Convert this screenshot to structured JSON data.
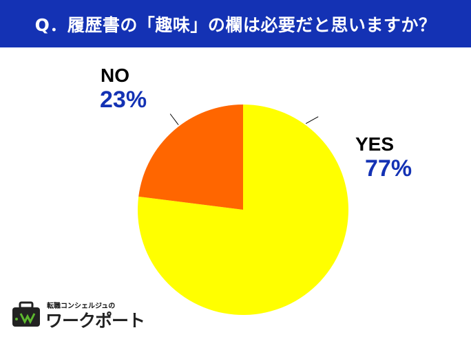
{
  "header": {
    "question": "Q．履歴書の「趣味」の欄は必要だと思いますか？"
  },
  "chart_data": {
    "type": "pie",
    "slices": [
      {
        "label": "YES",
        "percent_label": "77%",
        "value": 77,
        "color": "#ffff00"
      },
      {
        "label": "NO",
        "percent_label": "23%",
        "value": 23,
        "color": "#ff6600"
      }
    ],
    "start": "12 o'clock",
    "direction": "clockwise",
    "legend": "none"
  },
  "logo": {
    "tagline": "転職コンシェルジュの",
    "brand": "ワークポート",
    "icon": "briefcase-logo-icon",
    "brand_color": "#222222",
    "accent_color": "#5cb82e"
  }
}
